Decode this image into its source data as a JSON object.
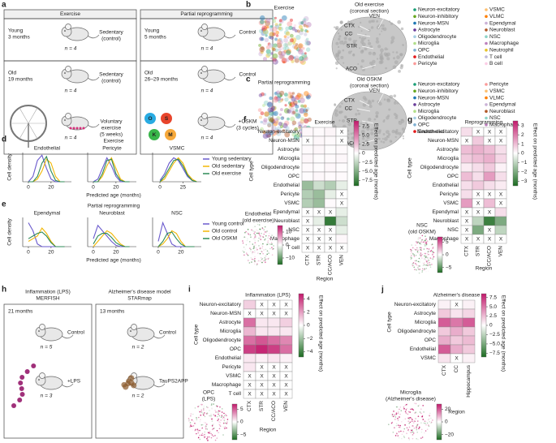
{
  "panel_a": {
    "letter": "a",
    "boxes": [
      {
        "title": "Exercise",
        "rows": [
          {
            "group": [
              "Young",
              "3 months"
            ],
            "label": [
              "Sedentary",
              "(control)"
            ],
            "n": "n = 4"
          },
          {
            "group": [
              "Old",
              "19 months"
            ],
            "label": [
              "Sedentary",
              "(control)"
            ],
            "n": "n = 4"
          },
          {
            "label": [
              "Voluntary",
              "exercise",
              "(5 weeks)"
            ],
            "n": "n = 4"
          }
        ]
      },
      {
        "title": "Partial reprogramming",
        "rows": [
          {
            "group": [
              "Young",
              "5 months"
            ],
            "label": [
              "Control"
            ],
            "n": "n = 4"
          },
          {
            "group": [
              "Old",
              "26–29 months"
            ],
            "label": [
              "Control"
            ],
            "n": "n = 4"
          },
          {
            "label": [
              "+OSKM",
              "(3 cycles)"
            ],
            "n": "n = 4"
          }
        ],
        "factors": [
          {
            "name": "O",
            "color": "#29abe2"
          },
          {
            "name": "S",
            "color": "#e8452c"
          },
          {
            "name": "K",
            "color": "#39b54a"
          },
          {
            "name": "M",
            "color": "#f7a93b"
          }
        ]
      }
    ]
  },
  "panel_b": {
    "letter": "b",
    "umap_title": "Exercise",
    "section_title": [
      "Old exercise",
      "(coronal section)"
    ],
    "regions": [
      "VEN",
      "CTX",
      "CC",
      "STR",
      "ACO"
    ],
    "legend_columns": [
      [
        {
          "name": "Neuron-excitatory",
          "color": "#1b9e77"
        },
        {
          "name": "Neuron-inhibitory",
          "color": "#66a61e"
        },
        {
          "name": "Neuron-MSN",
          "color": "#1f78b4"
        },
        {
          "name": "Astrocyte",
          "color": "#6a3d9a"
        },
        {
          "name": "Oligodendrocyte",
          "color": "#a6cee3"
        },
        {
          "name": "Microglia",
          "color": "#b2df8a"
        },
        {
          "name": "OPC",
          "color": "#80b1d3"
        },
        {
          "name": "Endothelial",
          "color": "#e31a1c"
        },
        {
          "name": "Pericyte",
          "color": "#fb9a99"
        }
      ],
      [
        {
          "name": "VSMC",
          "color": "#fdbf6f"
        },
        {
          "name": "VLMC",
          "color": "#ff7f00"
        },
        {
          "name": "Ependymal",
          "color": "#cab2d6"
        },
        {
          "name": "Neuroblast",
          "color": "#b15928"
        },
        {
          "name": "NSC",
          "color": "#8dd3c7"
        },
        {
          "name": "Macrophage",
          "color": "#bc80bd"
        },
        {
          "name": "Neutrophil",
          "color": "#e6c229"
        },
        {
          "name": "T cell",
          "color": "#bebada"
        },
        {
          "name": "B cell",
          "color": "#fccde5"
        }
      ]
    ]
  },
  "panel_c": {
    "letter": "c",
    "umap_title": "Partial reprogramming",
    "section_title": [
      "Old OSKM",
      "(coronal section)"
    ],
    "regions": [
      "VEN",
      "CTX",
      "CC",
      "STR",
      "ACO"
    ],
    "legend_columns": [
      [
        {
          "name": "Neuron-excitatory",
          "color": "#1b9e77"
        },
        {
          "name": "Neuron-inhibitory",
          "color": "#66a61e"
        },
        {
          "name": "Neuron-MSN",
          "color": "#1f78b4"
        },
        {
          "name": "Astrocyte",
          "color": "#6a3d9a"
        },
        {
          "name": "Microglia",
          "color": "#b2df8a"
        },
        {
          "name": "Oligodendrocyte",
          "color": "#a6cee3"
        },
        {
          "name": "OPC",
          "color": "#80b1d3"
        },
        {
          "name": "Endothelial",
          "color": "#e31a1c"
        }
      ],
      [
        {
          "name": "Pericyte",
          "color": "#fb9a99"
        },
        {
          "name": "VSMC",
          "color": "#fdbf6f"
        },
        {
          "name": "VLMC",
          "color": "#ff7f00"
        },
        {
          "name": "Ependymal",
          "color": "#cab2d6"
        },
        {
          "name": "Neuroblast",
          "color": "#b15928"
        },
        {
          "name": "NSC",
          "color": "#8dd3c7"
        },
        {
          "name": "Macrophage",
          "color": "#bc80bd"
        }
      ]
    ]
  },
  "panel_d": {
    "letter": "d",
    "title": "Exercise",
    "ylabel": "Cell density",
    "xlabel": "Predicted age (months)",
    "series": [
      {
        "name": "Young sedentary",
        "color": "#6a5acd"
      },
      {
        "name": "Old sedentary",
        "color": "#f2b705"
      },
      {
        "name": "Old exercise",
        "color": "#2e8b57"
      }
    ],
    "plots": [
      {
        "title": "Endothelial",
        "xlim": [
          -5,
          38
        ],
        "xticks": [
          0,
          20
        ],
        "ylim": [
          0,
          1.1
        ],
        "x": [
          0,
          4,
          8,
          12,
          16,
          20,
          24,
          28,
          32
        ],
        "values": [
          [
            0,
            0.2,
            0.8,
            1.0,
            0.5,
            0.1,
            0,
            0,
            0
          ],
          [
            0,
            0,
            0.1,
            0.4,
            0.85,
            0.7,
            0.2,
            0,
            0
          ],
          [
            0,
            0,
            0.2,
            0.7,
            0.95,
            0.4,
            0.05,
            0,
            0
          ]
        ]
      },
      {
        "title": "Pericyte",
        "xlim": [
          -5,
          38
        ],
        "xticks": [
          0,
          20
        ],
        "ylim": [
          0,
          1.1
        ],
        "x": [
          0,
          4,
          8,
          12,
          16,
          20,
          24,
          28,
          32
        ],
        "values": [
          [
            0,
            0.1,
            0.5,
            0.9,
            0.6,
            0.2,
            0,
            0,
            0
          ],
          [
            0,
            0,
            0.2,
            0.6,
            0.9,
            0.5,
            0.1,
            0,
            0
          ],
          [
            0,
            0,
            0.3,
            0.8,
            0.85,
            0.3,
            0.05,
            0,
            0
          ]
        ]
      },
      {
        "title": "VSMC",
        "xlim": [
          -8,
          45
        ],
        "xticks": [
          0,
          25
        ],
        "ylim": [
          0,
          1.1
        ],
        "x": [
          0,
          5,
          10,
          15,
          20,
          25,
          30,
          35,
          40
        ],
        "values": [
          [
            0.05,
            0.3,
            0.7,
            0.9,
            0.8,
            0.5,
            0.2,
            0.05,
            0
          ],
          [
            0,
            0.1,
            0.4,
            0.7,
            0.9,
            0.7,
            0.3,
            0.1,
            0
          ],
          [
            0,
            0.2,
            0.5,
            0.8,
            0.85,
            0.6,
            0.25,
            0.05,
            0
          ]
        ]
      }
    ]
  },
  "panel_e": {
    "letter": "e",
    "title": "Partial reprogramming",
    "ylabel": "Cell density",
    "xlabel": "Predicted age (months)",
    "series": [
      {
        "name": "Young control",
        "color": "#6a5acd"
      },
      {
        "name": "Old control",
        "color": "#f2b705"
      },
      {
        "name": "Old OSKM",
        "color": "#2e8b57"
      }
    ],
    "plots": [
      {
        "title": "Ependymal",
        "xlim": [
          -5,
          38
        ],
        "xticks": [
          0,
          20
        ],
        "ylim": [
          0,
          1.1
        ],
        "x": [
          0,
          4,
          8,
          12,
          16,
          20,
          24,
          28,
          32
        ],
        "values": [
          [
            0.9,
            0.6,
            0.1,
            0,
            0,
            0,
            0,
            0,
            0
          ],
          [
            0.2,
            0.3,
            0.4,
            0.7,
            0.5,
            0.2,
            0,
            0,
            0
          ],
          [
            0.3,
            0.4,
            0.5,
            0.55,
            0.4,
            0.15,
            0,
            0,
            0
          ]
        ]
      },
      {
        "title": "Neuroblast",
        "xlim": [
          -5,
          38
        ],
        "xticks": [
          0,
          20
        ],
        "ylim": [
          0,
          1.1
        ],
        "x": [
          0,
          4,
          8,
          12,
          16,
          20,
          24,
          28,
          32
        ],
        "values": [
          [
            0.3,
            0.8,
            0.6,
            0.4,
            0.2,
            0.05,
            0,
            0,
            0
          ],
          [
            0,
            0.2,
            0.4,
            0.6,
            0.5,
            0.3,
            0.1,
            0,
            0
          ],
          [
            0.1,
            0.4,
            0.5,
            0.5,
            0.35,
            0.15,
            0.05,
            0,
            0
          ]
        ]
      },
      {
        "title": "NSC",
        "xlim": [
          -5,
          38
        ],
        "xticks": [
          0,
          20
        ],
        "ylim": [
          0,
          1.1
        ],
        "x": [
          0,
          4,
          8,
          12,
          16,
          20,
          24,
          28,
          32
        ],
        "values": [
          [
            0.2,
            0.9,
            0.5,
            0.1,
            0,
            0,
            0,
            0,
            0
          ],
          [
            0,
            0.1,
            0.3,
            0.6,
            0.5,
            0.2,
            0,
            0,
            0
          ],
          [
            0,
            0.2,
            0.5,
            0.55,
            0.3,
            0.1,
            0,
            0,
            0
          ]
        ]
      }
    ]
  },
  "panel_f": {
    "letter": "f",
    "title": "Exercise",
    "ylabel": "Cell type",
    "xlabel": "Region",
    "na_label": "X",
    "colorbar_label": "Effect on predicted age (months)",
    "rows": [
      "Neuron-excitatory",
      "Neuron-MSN",
      "Astrocyte",
      "Microglia",
      "Oligodendrocyte",
      "OPC",
      "Endothelial",
      "Pericyte",
      "VSMC",
      "Ependymal",
      "Neuroblast",
      "NSC",
      "Macrophage",
      "T cell"
    ],
    "columns": [
      "CTX",
      "STR",
      "CC/ACO",
      "VEN"
    ],
    "values": [
      [
        0.3,
        0.2,
        0.4,
        null
      ],
      [
        null,
        0.3,
        0.2,
        null
      ],
      [
        0.2,
        0.3,
        0.1,
        0.2
      ],
      [
        0.3,
        0.1,
        0.2,
        0.3
      ],
      [
        0.2,
        0.1,
        0.3,
        0.1
      ],
      [
        0.1,
        0.3,
        0.2,
        0.2
      ],
      [
        -4,
        -2,
        -3,
        -1
      ],
      [
        -3,
        -4,
        -1,
        null
      ],
      [
        -3,
        -4,
        0.2,
        null
      ],
      [
        null,
        null,
        null,
        -1
      ],
      [
        null,
        -1,
        -8,
        -2
      ],
      [
        null,
        null,
        null,
        -1
      ],
      [
        null,
        null,
        null,
        0.3
      ],
      [
        null,
        null,
        null,
        null
      ]
    ],
    "clim": [
      -9,
      9
    ],
    "cticks": [
      {
        "value": 7.5,
        "label": "7.5"
      },
      {
        "value": 5,
        "label": "5.0"
      },
      {
        "value": 2.5,
        "label": "2.5"
      },
      0,
      {
        "value": -2.5,
        "label": "−2.5"
      },
      {
        "value": -5,
        "label": "−5.0"
      },
      {
        "value": -7.5,
        "label": "−7.5"
      }
    ],
    "inset": {
      "title": [
        "Endothelial",
        "(old exercise)"
      ],
      "clim": [
        -15,
        15
      ],
      "cticks": [
        10,
        0,
        {
          "value": -10,
          "label": "−10"
        }
      ]
    }
  },
  "panel_g": {
    "letter": "g",
    "title": "Reprogramming",
    "ylabel": "Cell type",
    "xlabel": "Region",
    "na_label": "X",
    "colorbar_label": "Effect on predicted age (months)",
    "rows": [
      "Neuron-excitatory",
      "Neuron-MSN",
      "Astrocyte",
      "Microglia",
      "Oligodendrocyte",
      "OPC",
      "Endothelial",
      "Pericyte",
      "VSMC",
      "Ependymal",
      "Neuroblast",
      "NSC",
      "Macrophage"
    ],
    "columns": [
      "CTX",
      "STR",
      "CC/ACO",
      "VEN"
    ],
    "values": [
      [
        0.5,
        null,
        null,
        null
      ],
      [
        null,
        0.8,
        null,
        null
      ],
      [
        1,
        1.2,
        1,
        0.5
      ],
      [
        0.8,
        1,
        1.2,
        0.6
      ],
      [
        0.3,
        0.5,
        0.8,
        0.2
      ],
      [
        1,
        0.5,
        1.5,
        0.5
      ],
      [
        0.5,
        0.8,
        0.5,
        0.3
      ],
      [
        0.5,
        null,
        null,
        null
      ],
      [
        1.5,
        null,
        1,
        null
      ],
      [
        null,
        null,
        null,
        0.5
      ],
      [
        null,
        -1,
        -3,
        -2
      ],
      [
        null,
        -2,
        null,
        -1
      ],
      [
        null,
        null,
        null,
        null
      ]
    ],
    "clim": [
      -3.5,
      3.5
    ],
    "cticks": [
      3,
      2,
      1,
      0,
      {
        "value": -1,
        "label": "−1"
      },
      {
        "value": -2,
        "label": "−2"
      },
      {
        "value": -3,
        "label": "−3"
      }
    ],
    "inset": {
      "title": [
        "NSC",
        "(old OSKM)"
      ],
      "clim": [
        -7,
        7
      ],
      "cticks": [
        5,
        0,
        {
          "value": -5,
          "label": "−5"
        }
      ]
    }
  },
  "panel_h": {
    "letter": "h",
    "boxes": [
      {
        "title": [
          "Inflammation (LPS)",
          "MERFISH"
        ],
        "age": "21 months",
        "rows": [
          {
            "label": "Control",
            "n": "n = 5"
          },
          {
            "label": "+LPS",
            "n": "n = 3"
          }
        ]
      },
      {
        "title": [
          "Alzheimer's disease model",
          "STARmap"
        ],
        "age": "13 months",
        "rows": [
          {
            "label": "Control",
            "n": "n = 2"
          },
          {
            "label": "TauPS2APP",
            "n": "n = 2"
          }
        ]
      }
    ]
  },
  "panel_i": {
    "letter": "i",
    "title": "Inflammation (LPS)",
    "ylabel": "Cell type",
    "xlabel": "Region",
    "na_label": "X",
    "colorbar_label": "Effect on predicted age (months)",
    "rows": [
      "Neuron-excitatory",
      "Neuron-MSN",
      "Astrocyte",
      "Microglia",
      "Oligodendrocyte",
      "OPC",
      "Endothelial",
      "Pericyte",
      "VSMC",
      "Macrophage",
      "T cell"
    ],
    "columns": [
      "CTX",
      "STR",
      "CC/ACO",
      "VEN"
    ],
    "values": [
      [
        1,
        null,
        null,
        null
      ],
      [
        null,
        null,
        null,
        null
      ],
      [
        3,
        0.5,
        0.5,
        1
      ],
      [
        1.5,
        0.5,
        0.5,
        0.5
      ],
      [
        3,
        3.5,
        3,
        2.5
      ],
      [
        4,
        4.5,
        4,
        3
      ],
      [
        0.5,
        0.3,
        0.5,
        0.3
      ],
      [
        0.5,
        null,
        null,
        null
      ],
      [
        null,
        null,
        null,
        null
      ],
      [
        null,
        null,
        null,
        null
      ],
      [
        null,
        null,
        null,
        null
      ]
    ],
    "clim": [
      -4.8,
      4.8
    ],
    "cticks": [
      4,
      2,
      0,
      {
        "value": -2,
        "label": "−2"
      },
      {
        "value": -4,
        "label": "−4"
      }
    ],
    "inset": {
      "title": [
        "OPC",
        "(LPS)"
      ],
      "clim": [
        -7,
        7
      ],
      "cticks": [
        5,
        0,
        {
          "value": -5,
          "label": "−5"
        }
      ]
    }
  },
  "panel_j": {
    "letter": "j",
    "title": "Alzheimer's disease",
    "ylabel": "Cell type",
    "xlabel": "Region",
    "na_label": "X",
    "colorbar_label": "Effect on predicted age (months)",
    "rows": [
      "Neuron-excitatory",
      "Astrocyte",
      "Microglia",
      "Oligodendrocyte",
      "OPC",
      "Endothelial",
      "VSMC"
    ],
    "columns": [
      "CTX",
      "CC",
      "Hippocampus"
    ],
    "values": [
      [
        0.5,
        null,
        0.5
      ],
      [
        2,
        1,
        1.5
      ],
      [
        6,
        5,
        6
      ],
      [
        2,
        3,
        2
      ],
      [
        3,
        2,
        2.5
      ],
      [
        6,
        3,
        2
      ],
      [
        1,
        null,
        0.5
      ]
    ],
    "clim": [
      -8.5,
      8.5
    ],
    "cticks": [
      {
        "value": 7.5,
        "label": "7.5"
      },
      {
        "value": 5,
        "label": "5.0"
      },
      {
        "value": 2.5,
        "label": "2.5"
      },
      0,
      {
        "value": -2.5,
        "label": "−2.5"
      },
      {
        "value": -5,
        "label": "−5.0"
      },
      {
        "value": -7.5,
        "label": "−7.5"
      }
    ],
    "inset": {
      "title": [
        "Microglia",
        "(Alzheimer's disease)"
      ],
      "clim": [
        -28,
        28
      ],
      "cticks": [
        20,
        0,
        {
          "value": -20,
          "label": "−20"
        }
      ]
    }
  }
}
